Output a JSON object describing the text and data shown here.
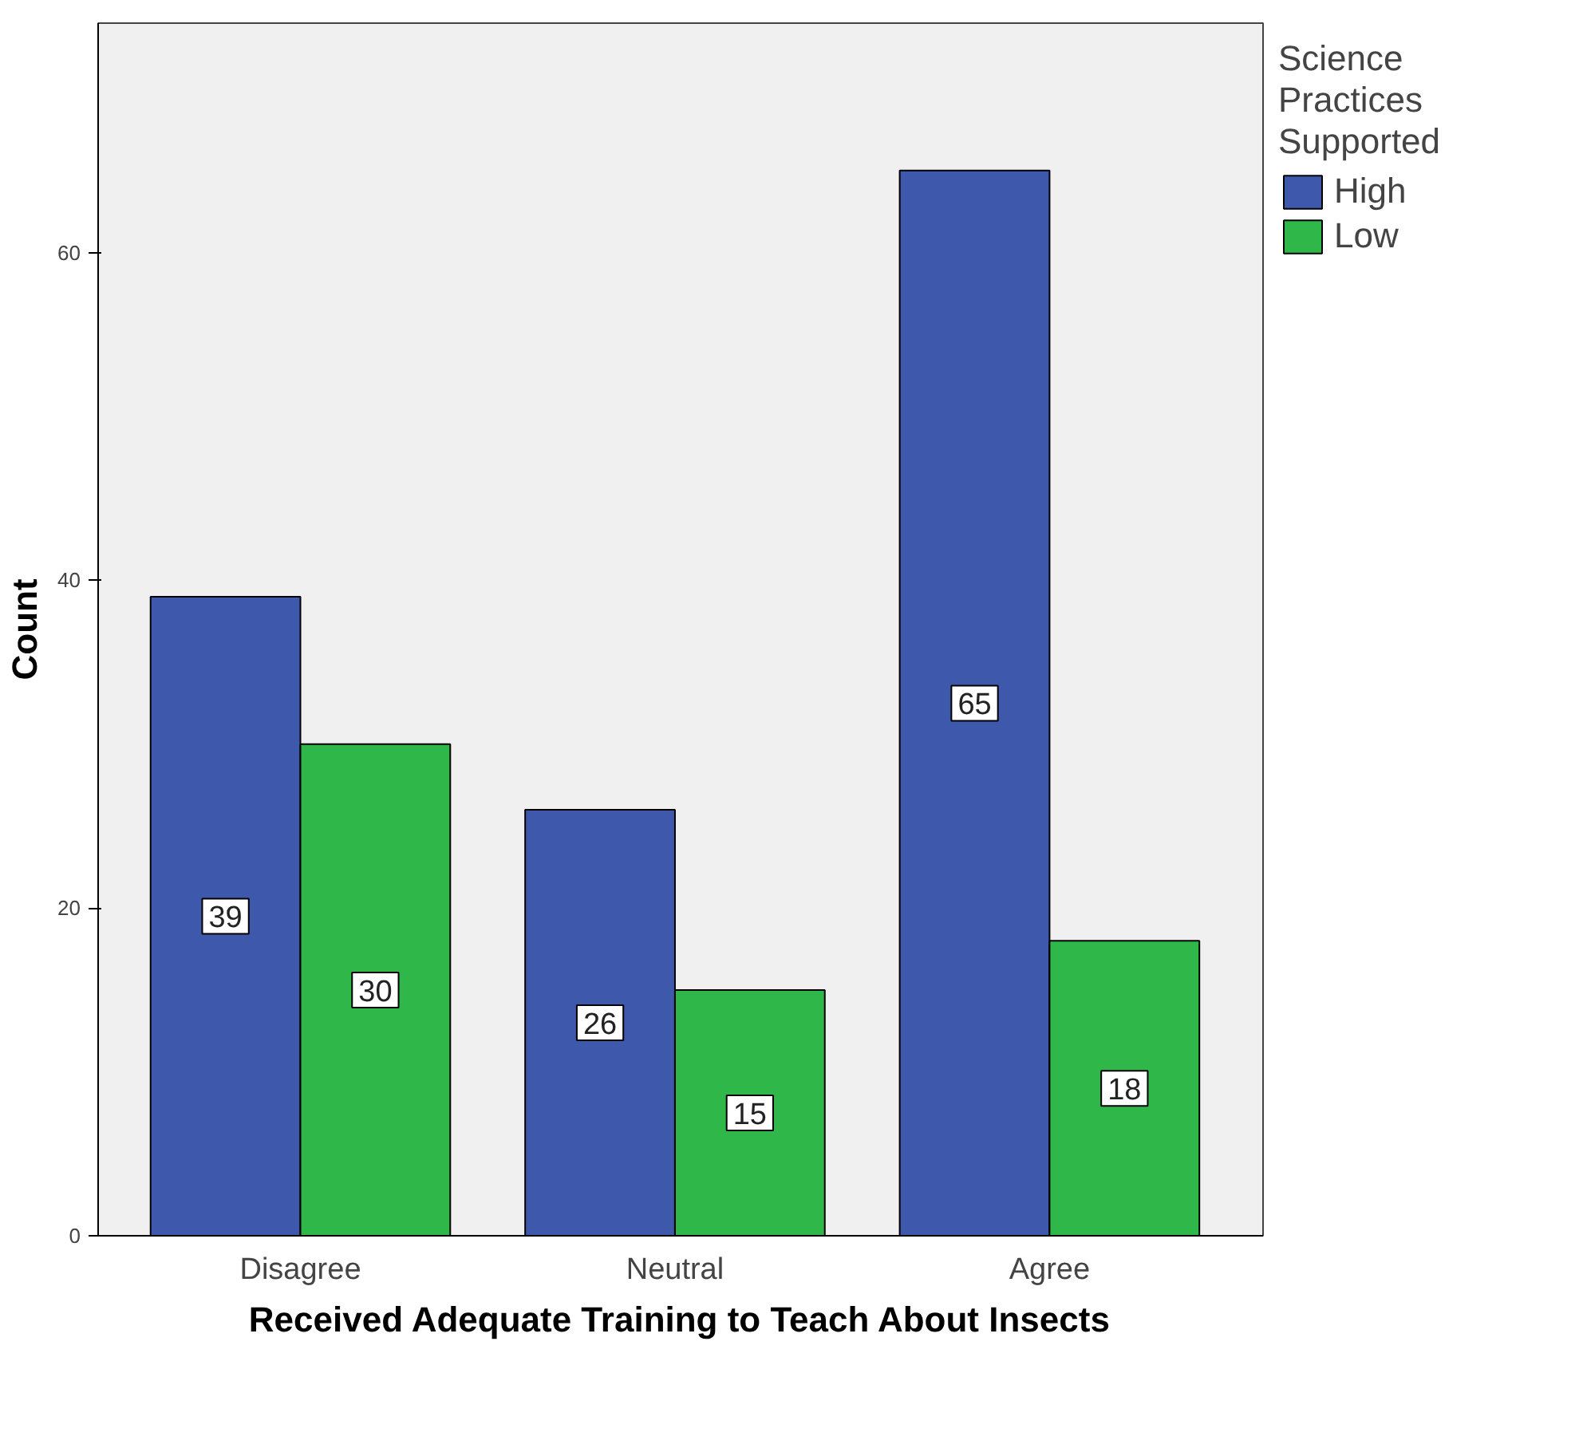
{
  "chart_data": {
    "type": "bar",
    "xlabel": "Received Adequate Training to Teach About Insects",
    "ylabel": "Count",
    "legend_title": "Science Practices Supported",
    "categories": [
      "Disagree",
      "Neutral",
      "Agree"
    ],
    "series": [
      {
        "name": "High",
        "color": "#3e58ac",
        "values": [
          39,
          26,
          65
        ]
      },
      {
        "name": "Low",
        "color": "#2fb849",
        "values": [
          30,
          15,
          18
        ]
      }
    ],
    "ylim": [
      0,
      74
    ],
    "yticks": [
      0,
      20,
      40,
      60
    ],
    "grid": false,
    "legend": "right",
    "data_labels": true
  }
}
